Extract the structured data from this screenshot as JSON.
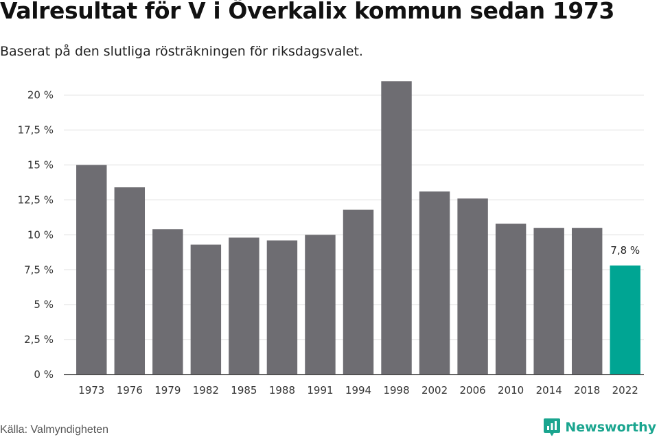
{
  "chart_data": {
    "type": "bar",
    "title": "Valresultat för V i Överkalix kommun sedan 1973",
    "subtitle": "Baserat på den slutliga rösträkningen för riksdagsvalet.",
    "categories": [
      "1973",
      "1976",
      "1979",
      "1982",
      "1985",
      "1988",
      "1991",
      "1994",
      "1998",
      "2002",
      "2006",
      "2010",
      "2014",
      "2018",
      "2022"
    ],
    "values": [
      15.0,
      13.4,
      10.4,
      9.3,
      9.8,
      9.6,
      10.0,
      11.8,
      21.0,
      13.1,
      12.6,
      10.8,
      10.5,
      10.5,
      7.8
    ],
    "ylim": [
      0,
      21.9
    ],
    "yticks": [
      0,
      2.5,
      5,
      7.5,
      10,
      12.5,
      15,
      17.5,
      20
    ],
    "ytick_labels": [
      "0 %",
      "2,5 %",
      "5 %",
      "7,5 %",
      "10 %",
      "12,5 %",
      "15 %",
      "17,5 %",
      "20 %"
    ],
    "grid": true,
    "bar_color": "#6e6d72",
    "highlight_color": "#00a593",
    "highlight_index": 14,
    "annotations": [
      {
        "index": 14,
        "text": "7,8 %"
      }
    ],
    "xlabel": "",
    "ylabel": ""
  },
  "footer": {
    "source": "Källa: Valmyndigheten",
    "brand": "Newsworthy",
    "brand_icon": "newsworthy-logo-icon"
  }
}
